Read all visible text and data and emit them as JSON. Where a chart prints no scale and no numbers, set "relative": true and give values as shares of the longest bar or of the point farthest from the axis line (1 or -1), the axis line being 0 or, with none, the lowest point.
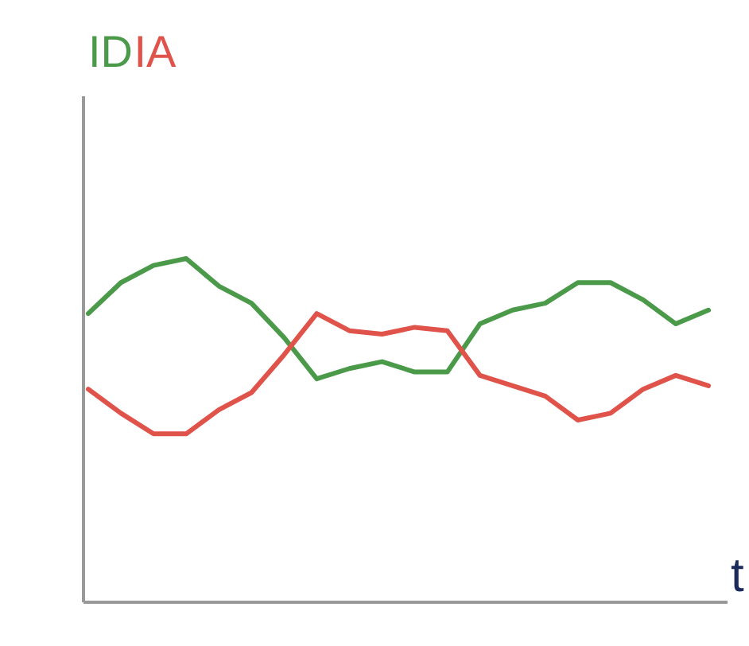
{
  "chart_data": {
    "type": "line",
    "relative": true,
    "xlabel": "t",
    "legend": false,
    "grid": false,
    "tick_labels": false,
    "categories": [
      null,
      null,
      null,
      null,
      null,
      null,
      null,
      null,
      null,
      null,
      null,
      null,
      null,
      null,
      null,
      null,
      null,
      null,
      null,
      null
    ],
    "series": [
      {
        "name": "ID",
        "color": "#4a9a4a",
        "values": [
          0.84,
          0.93,
          0.98,
          1.0,
          0.92,
          0.87,
          0.77,
          0.65,
          0.68,
          0.7,
          0.67,
          0.67,
          0.81,
          0.85,
          0.87,
          0.93,
          0.93,
          0.88,
          0.81,
          0.85
        ]
      },
      {
        "name": "IA",
        "color": "#e0534a",
        "values": [
          0.62,
          0.55,
          0.49,
          0.49,
          0.56,
          0.61,
          0.72,
          0.84,
          0.79,
          0.78,
          0.8,
          0.79,
          0.66,
          0.63,
          0.6,
          0.53,
          0.55,
          0.62,
          0.66,
          0.63
        ]
      }
    ]
  }
}
